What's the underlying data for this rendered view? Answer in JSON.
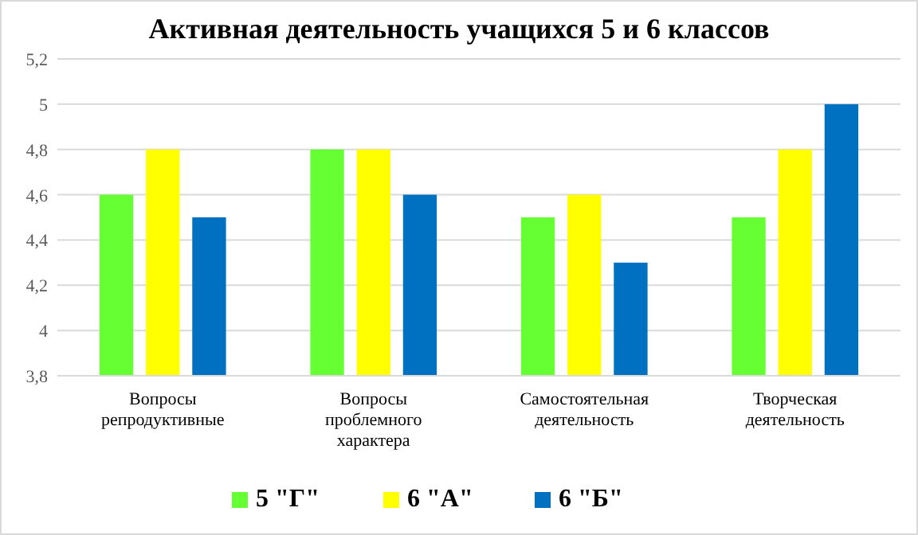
{
  "chart_data": {
    "type": "bar",
    "title": "Активная деятельность учащихся 5 и 6 классов",
    "categories": [
      "Вопросы репродуктивные",
      "Вопросы проблемного характера",
      "Самостоятельная деятельность",
      "Творческая деятельность"
    ],
    "series": [
      {
        "name": "5 \"Г\"",
        "color": "#66ff33",
        "values": [
          4.6,
          4.8,
          4.5,
          4.5
        ]
      },
      {
        "name": "6 \"А\"",
        "color": "#ffff00",
        "values": [
          4.8,
          4.8,
          4.6,
          4.8
        ]
      },
      {
        "name": "6 \"Б\"",
        "color": "#0070c0",
        "values": [
          4.5,
          4.6,
          4.3,
          5.0
        ]
      }
    ],
    "ylim": [
      3.8,
      5.2
    ],
    "yticks": [
      {
        "value": 3.8,
        "label": "3,8"
      },
      4,
      {
        "value": 4.2,
        "label": "4,2"
      },
      {
        "value": 4.4,
        "label": "4,4"
      },
      {
        "value": 4.6,
        "label": "4,6"
      },
      {
        "value": 4.8,
        "label": "4,8"
      },
      5,
      {
        "value": 5.2,
        "label": "5,2"
      }
    ],
    "grid": "y",
    "legend": "bottom"
  }
}
